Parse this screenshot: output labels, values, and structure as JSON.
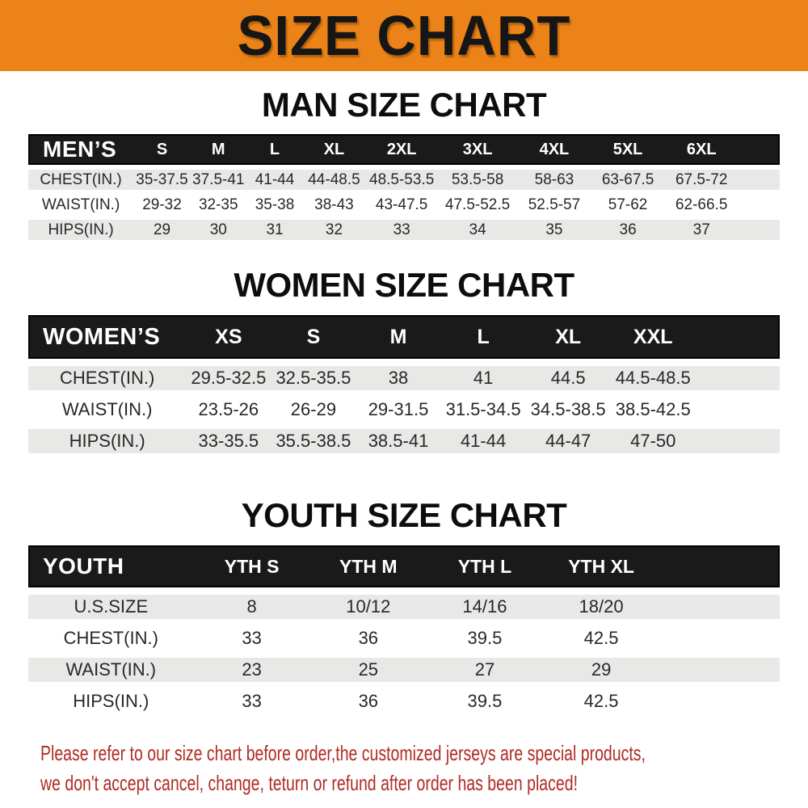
{
  "banner": {
    "title": "SIZE CHART"
  },
  "colors": {
    "banner_bg": "#ec8318",
    "bar_bg": "#1a1a1a",
    "stripe": "#e8e8e6",
    "note_color": "#b02c24"
  },
  "sections": [
    {
      "id": "men",
      "heading": "MAN SIZE CHART",
      "table": {
        "label": "MEN’S",
        "columns": [
          "S",
          "M",
          "L",
          "XL",
          "2XL",
          "3XL",
          "4XL",
          "5XL",
          "6XL"
        ],
        "rows": [
          {
            "label": "CHEST(IN.)",
            "values": [
              "35-37.5",
              "37.5-41",
              "41-44",
              "44-48.5",
              "48.5-53.5",
              "53.5-58",
              "58-63",
              "63-67.5",
              "67.5-72"
            ]
          },
          {
            "label": "WAIST(IN.)",
            "values": [
              "29-32",
              "32-35",
              "35-38",
              "38-43",
              "43-47.5",
              "47.5-52.5",
              "52.5-57",
              "57-62",
              "62-66.5"
            ]
          },
          {
            "label": "HIPS(IN.)",
            "values": [
              "29",
              "30",
              "31",
              "32",
              "33",
              "34",
              "35",
              "36",
              "37"
            ]
          }
        ]
      }
    },
    {
      "id": "women",
      "heading": "WOMEN SIZE CHART",
      "table": {
        "label": "WOMEN’S",
        "columns": [
          "XS",
          "S",
          "M",
          "L",
          "XL",
          "XXL"
        ],
        "rows": [
          {
            "label": "CHEST(IN.)",
            "values": [
              "29.5-32.5",
              "32.5-35.5",
              "38",
              "41",
              "44.5",
              "44.5-48.5"
            ]
          },
          {
            "label": "WAIST(IN.)",
            "values": [
              "23.5-26",
              "26-29",
              "29-31.5",
              "31.5-34.5",
              "34.5-38.5",
              "38.5-42.5"
            ]
          },
          {
            "label": "HIPS(IN.)",
            "values": [
              "33-35.5",
              "35.5-38.5",
              "38.5-41",
              "41-44",
              "44-47",
              "47-50"
            ]
          }
        ]
      }
    },
    {
      "id": "youth",
      "heading": "YOUTH SIZE CHART",
      "table": {
        "label": "YOUTH",
        "columns": [
          "YTH S",
          "YTH M",
          "YTH L",
          "YTH XL"
        ],
        "rows": [
          {
            "label": "U.S.SIZE",
            "values": [
              "8",
              "10/12",
              "14/16",
              "18/20"
            ]
          },
          {
            "label": "CHEST(IN.)",
            "values": [
              "33",
              "36",
              "39.5",
              "42.5"
            ]
          },
          {
            "label": "WAIST(IN.)",
            "values": [
              "23",
              "25",
              "27",
              "29"
            ]
          },
          {
            "label": "HIPS(IN.)",
            "values": [
              "33",
              "36",
              "39.5",
              "42.5"
            ]
          }
        ]
      }
    }
  ],
  "footer": {
    "line1": "Please refer to our size chart before order,the customized jerseys are special products,",
    "line2": "we don't accept cancel, change, teturn or refund after order has been placed!"
  }
}
